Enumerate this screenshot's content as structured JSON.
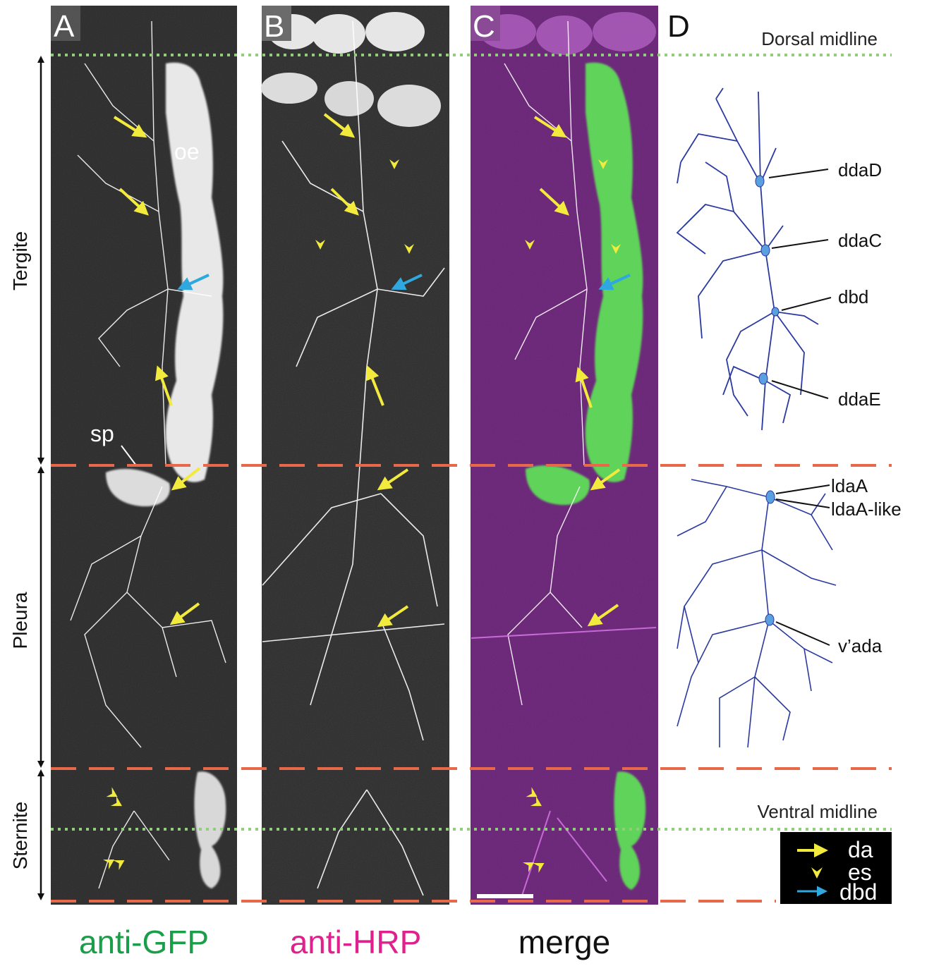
{
  "panels": {
    "a": {
      "letter": "A",
      "caption": "anti-GFP",
      "caption_color": "#1a9e4a"
    },
    "b": {
      "letter": "B",
      "caption": "anti-HRP",
      "caption_color": "#e0208c"
    },
    "c": {
      "letter": "C",
      "caption": "merge",
      "caption_color": "#111111"
    },
    "d": {
      "letter": "D"
    }
  },
  "regions": {
    "tergite": "Tergite",
    "pleura": "Pleura",
    "sternite": "Sternite"
  },
  "midlines": {
    "dorsal": "Dorsal midline",
    "ventral": "Ventral midline"
  },
  "in_image_labels": {
    "oe": "oe",
    "sp": "sp"
  },
  "neuron_labels": {
    "ddaD": "ddaD",
    "ddaC": "ddaC",
    "dbd": "dbd",
    "ddaE": "ddaE",
    "ldaA": "ldaA",
    "ldaA_like": "ldaA-like",
    "vada": "v’ada"
  },
  "legend": {
    "items": [
      {
        "symbol": "arrow",
        "label": "da",
        "color": "#f2ea3c"
      },
      {
        "symbol": "arrowhead",
        "label": "es",
        "color": "#f2ea3c"
      },
      {
        "symbol": "arrow",
        "label": "dbd",
        "color": "#2fa8e0"
      }
    ]
  },
  "colors": {
    "segment_boundary": "#e8694a",
    "midline": "#8fcf7a",
    "da_arrow": "#f2ea3c",
    "dbd_arrow": "#2fa8e0",
    "tracing": "#2a3aa0",
    "merge_bg": "#7a2a86",
    "gfp": "#5fd35a"
  }
}
